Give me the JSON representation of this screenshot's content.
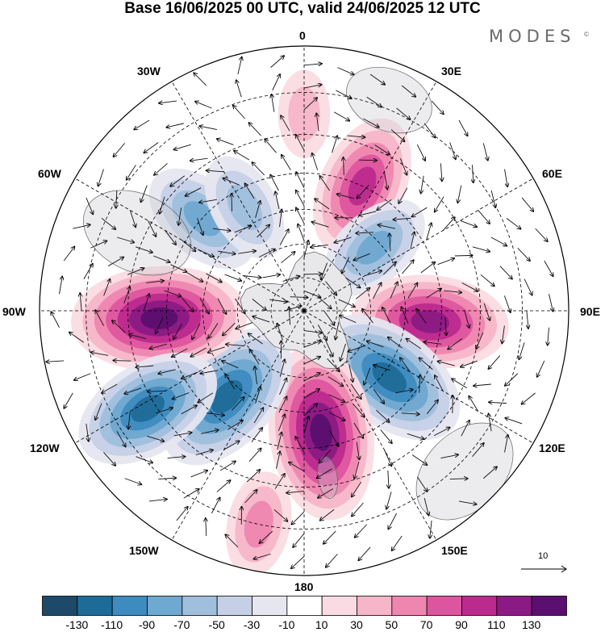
{
  "title": "Base 16/06/2025 00 UTC, valid 24/06/2025 12 UTC",
  "brand": {
    "name": "MODES",
    "mark": "©"
  },
  "longitude_labels": {
    "lon_0": "0",
    "lon_30e": "30E",
    "lon_60e": "60E",
    "lon_90e": "90E",
    "lon_120e": "120E",
    "lon_150e": "150E",
    "lon_180": "180",
    "lon_150w": "150W",
    "lon_120w": "120W",
    "lon_90w": "90W",
    "lon_60w": "60W",
    "lon_30w": "30W"
  },
  "reference_vector": {
    "label": "10"
  },
  "colorbar": {
    "colors": [
      "#1e4a69",
      "#1f6b98",
      "#3e8bc0",
      "#6fa8d0",
      "#9fbfdd",
      "#c5d0e6",
      "#e6e6f0",
      "#ffffff",
      "#fbdbe3",
      "#f6b5c8",
      "#ee86b0",
      "#dd559f",
      "#bc2a8e",
      "#8b1a84",
      "#5b0f6e"
    ],
    "ticks": [
      "-130",
      "-110",
      "-90",
      "-70",
      "-50",
      "-30",
      "-10",
      "10",
      "30",
      "50",
      "70",
      "90",
      "110",
      "130"
    ]
  },
  "field": {
    "positive_color": "#c2217f",
    "negative_color": "#1f5f8b",
    "anomalies": [
      {
        "lon": 25,
        "lat": -50,
        "value": 100
      },
      {
        "lon": 48,
        "lat": -62,
        "value": -75
      },
      {
        "lon": 95,
        "lat": -53,
        "value": 115
      },
      {
        "lon": 128,
        "lat": -58,
        "value": -120
      },
      {
        "lon": 172,
        "lat": -54,
        "value": 135
      },
      {
        "lon": -138,
        "lat": -56,
        "value": -120
      },
      {
        "lon": -93,
        "lat": -48,
        "value": 135
      },
      {
        "lon": -122,
        "lat": -38,
        "value": -110
      },
      {
        "lon": -48,
        "lat": -50,
        "value": -80
      },
      {
        "lon": -30,
        "lat": -55,
        "value": -65
      },
      {
        "lon": -168,
        "lat": -30,
        "value": 60
      },
      {
        "lon": 0,
        "lat": -35,
        "value": 40
      }
    ]
  }
}
